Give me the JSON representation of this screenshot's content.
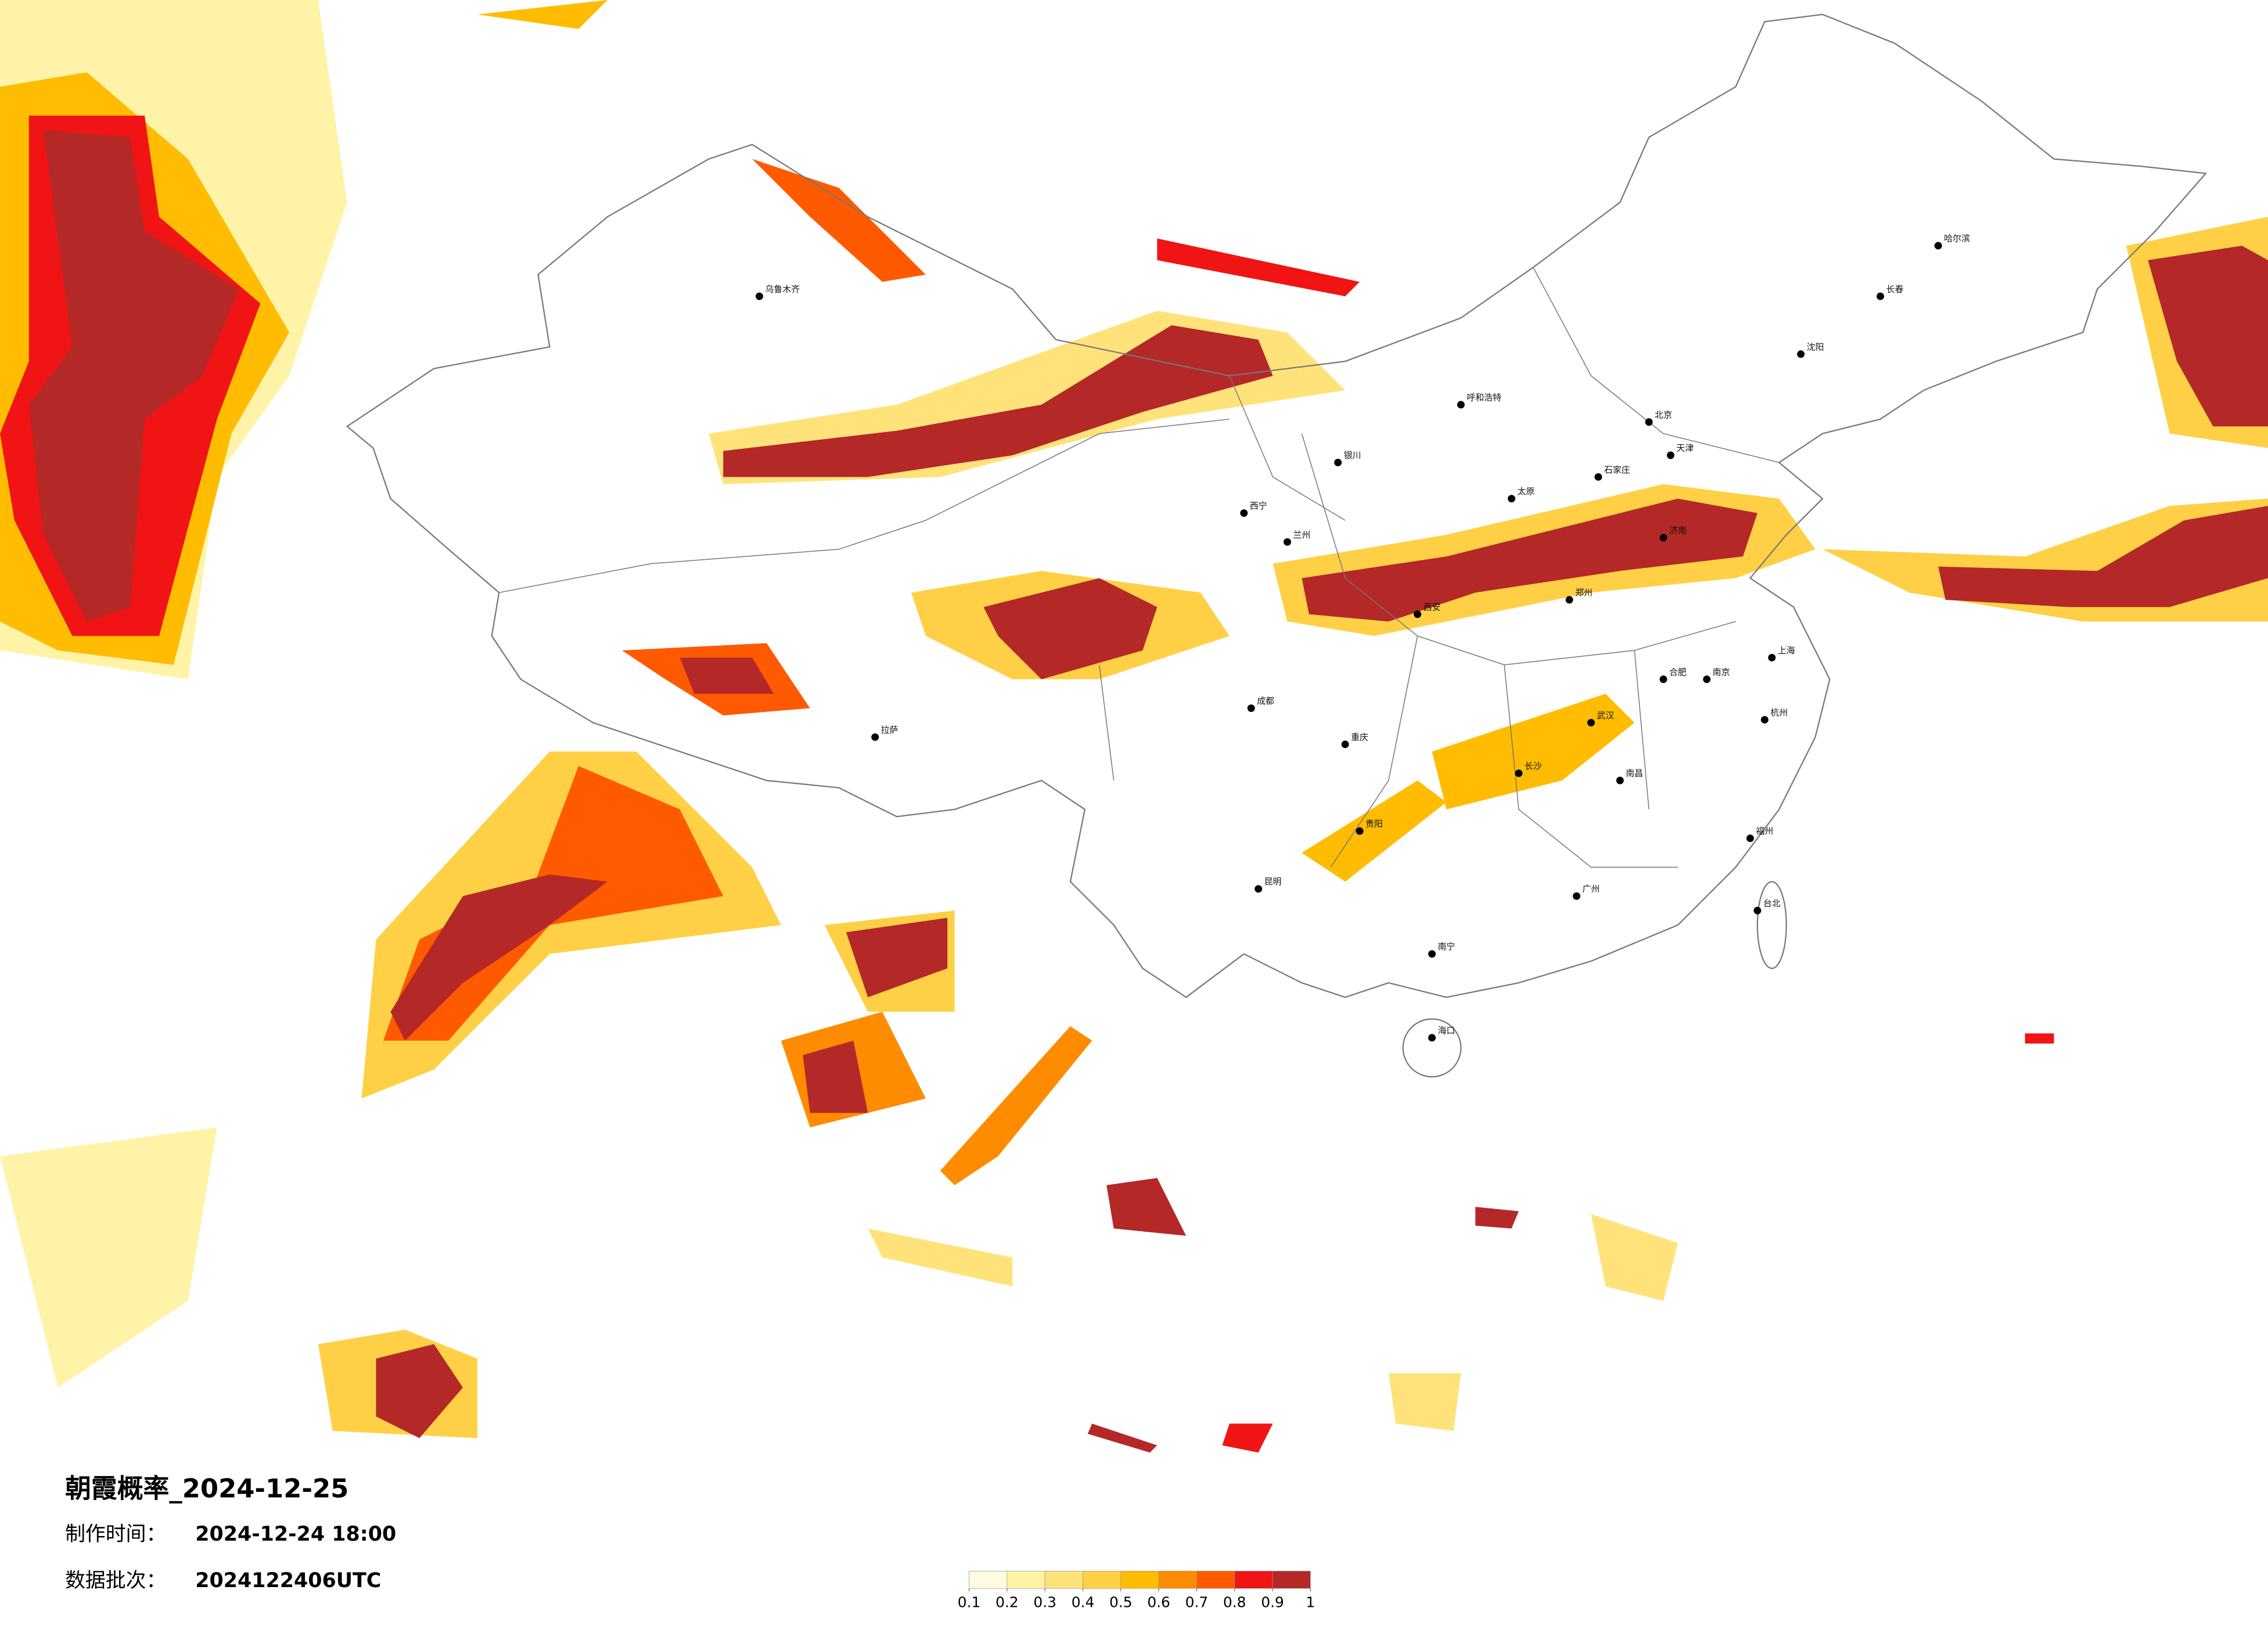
{
  "title": "朝霞概率_2024-12-25",
  "info": [
    {
      "label": "制作时间：",
      "value": "2024-12-24 18:00"
    },
    {
      "label": "数据批次：",
      "value": "2024122406UTC"
    }
  ],
  "colorbar": {
    "colors": [
      "#fffbe0",
      "#fff3a8",
      "#ffe37a",
      "#ffd046",
      "#ffbc00",
      "#ff8c00",
      "#ff5a00",
      "#f01414",
      "#b42828"
    ],
    "ticks": [
      0.1,
      0.2,
      0.3,
      0.4,
      0.5,
      0.6,
      0.7,
      0.8,
      0.9,
      1
    ]
  },
  "cities": [
    "北京",
    "天津",
    "石家庄",
    "太原",
    "呼和浩特",
    "沈阳",
    "长春",
    "哈尔滨",
    "济南",
    "郑州",
    "南京",
    "合肥",
    "上海",
    "杭州",
    "武汉",
    "长沙",
    "南昌",
    "福州",
    "广州",
    "南宁",
    "海口",
    "贵阳",
    "昆明",
    "成都",
    "重庆",
    "西安",
    "兰州",
    "西宁",
    "银川",
    "乌鲁木齐",
    "拉萨",
    "台北"
  ]
}
